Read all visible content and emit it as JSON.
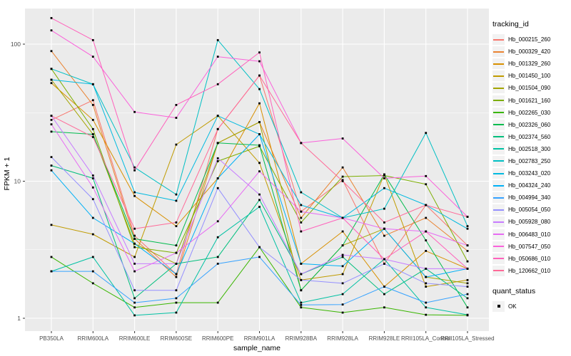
{
  "legend": {
    "tracking_title": "tracking_id",
    "quant_title": "quant_status",
    "quant_items": [
      {
        "label": "OK",
        "marker": "black-square"
      }
    ]
  },
  "chart_data": {
    "type": "line",
    "title": "",
    "xlabel": "sample_name",
    "ylabel": "FPKM + 1",
    "y_scale": "log10",
    "ylim": [
      0.8,
      190
    ],
    "y_ticks": [
      1,
      10,
      100
    ],
    "y_minor_ticks": [
      3.162,
      31.623
    ],
    "grid": "on",
    "legend_position": "right",
    "panel_bg": "#EBEBEB",
    "grid_color": "#FFFFFF",
    "point_color": "#000000",
    "point_shape": "square",
    "categories": [
      "PB350LA",
      "RRIM600LA",
      "RRIM600LE",
      "RRIM600SE",
      "RRIM600PE",
      "RRIM901LA",
      "RRIM928BA",
      "RRIM928LA",
      "RRIM928LE",
      "RRII105LA_Control",
      "RRII105LA_Stressed"
    ],
    "series": [
      {
        "name": "Hb_000215_260",
        "color": "#F8766D",
        "values": [
          28,
          39,
          4.0,
          2.1,
          24,
          59,
          6.0,
          10.2,
          2.5,
          6.7,
          3.4
        ]
      },
      {
        "name": "Hb_000329_420",
        "color": "#EA8331",
        "values": [
          89,
          36,
          3.8,
          2.0,
          19,
          27,
          5.4,
          12.6,
          4.0,
          5.4,
          3.1
        ]
      },
      {
        "name": "Hb_001329_260",
        "color": "#D89000",
        "values": [
          52,
          28,
          7.8,
          4.7,
          10.5,
          37,
          2.5,
          4.3,
          1.7,
          3.1,
          2.3
        ]
      },
      {
        "name": "Hb_001450_100",
        "color": "#C09B00",
        "values": [
          4.8,
          4.1,
          2.8,
          18.5,
          30,
          13.6,
          1.9,
          2.1,
          11.2,
          1.7,
          1.9
        ]
      },
      {
        "name": "Hb_001504_090",
        "color": "#A3A500",
        "values": [
          55,
          22,
          3.5,
          2.5,
          19,
          27,
          1.6,
          3.4,
          4.5,
          2.0,
          1.8
        ]
      },
      {
        "name": "Hb_001621_160",
        "color": "#7CAE00",
        "values": [
          66,
          24,
          3.3,
          3.0,
          14,
          18,
          5.0,
          10.8,
          11.0,
          9.5,
          2.6
        ]
      },
      {
        "name": "Hb_002265_030",
        "color": "#39B600",
        "values": [
          2.8,
          1.8,
          1.2,
          1.3,
          1.3,
          3.3,
          1.2,
          1.1,
          1.2,
          1.06,
          1.05
        ]
      },
      {
        "name": "Hb_002326_060",
        "color": "#00BB4E",
        "values": [
          23,
          22,
          3.8,
          3.4,
          19,
          18.3,
          1.6,
          3.4,
          11.2,
          3.7,
          1.2
        ]
      },
      {
        "name": "Hb_002374_560",
        "color": "#00BF7D",
        "values": [
          13,
          10.5,
          1.4,
          2.5,
          2.8,
          7.3,
          2.1,
          2.8,
          1.5,
          2.3,
          1.4
        ]
      },
      {
        "name": "Hb_002518_300",
        "color": "#00C1A3",
        "values": [
          2.2,
          2.8,
          1.05,
          1.1,
          3.9,
          6.5,
          1.3,
          1.5,
          2.7,
          1.2,
          1.06
        ]
      },
      {
        "name": "Hb_002783_250",
        "color": "#00BFC4",
        "values": [
          66,
          51,
          12.6,
          8.0,
          107,
          47,
          8.3,
          5.4,
          6.3,
          22.5,
          4.7
        ]
      },
      {
        "name": "Hb_003243_020",
        "color": "#00BAE0",
        "values": [
          55,
          51,
          8.3,
          7.2,
          30,
          22,
          6.7,
          5.4,
          8.9,
          6.7,
          4.5
        ]
      },
      {
        "name": "Hb_004324_240",
        "color": "#00B0F6",
        "values": [
          12,
          5.4,
          3.5,
          2.1,
          10.5,
          22,
          2.5,
          2.4,
          4.5,
          2.0,
          2.3
        ]
      },
      {
        "name": "Hb_004994_340",
        "color": "#35A2FF",
        "values": [
          2.2,
          2.2,
          1.3,
          1.4,
          2.5,
          2.8,
          1.25,
          1.26,
          1.7,
          1.3,
          1.5
        ]
      },
      {
        "name": "Hb_005054_050",
        "color": "#9590FF",
        "values": [
          15,
          7.4,
          1.6,
          1.6,
          8.9,
          3.3,
          1.9,
          1.8,
          2.5,
          1.8,
          1.7
        ]
      },
      {
        "name": "Hb_005928_080",
        "color": "#C77CFF",
        "values": [
          30,
          11,
          2.5,
          2.5,
          14.7,
          8.0,
          2.1,
          2.9,
          2.7,
          2.3,
          2.3
        ]
      },
      {
        "name": "Hb_006483_010",
        "color": "#E76BF3",
        "values": [
          26,
          9.0,
          2.2,
          3.0,
          5.1,
          11.8,
          6.0,
          5.4,
          4.5,
          4.3,
          3.4
        ]
      },
      {
        "name": "Hb_007547_050",
        "color": "#FA62DB",
        "values": [
          126,
          81,
          32,
          29,
          81,
          75,
          19,
          20.5,
          10.5,
          10.9,
          5.5
        ]
      },
      {
        "name": "Hb_050686_010",
        "color": "#FF62BC",
        "values": [
          155,
          107,
          12,
          36,
          51,
          87,
          4.3,
          5.4,
          2.7,
          4.3,
          2.3
        ]
      },
      {
        "name": "Hb_120662_010",
        "color": "#FF6A98",
        "values": [
          30,
          21,
          4.5,
          5.0,
          24,
          59,
          19,
          10,
          5.0,
          6.7,
          5.5
        ]
      }
    ],
    "axis_text_color": "#4D4D4D",
    "tick_color": "#333333"
  }
}
